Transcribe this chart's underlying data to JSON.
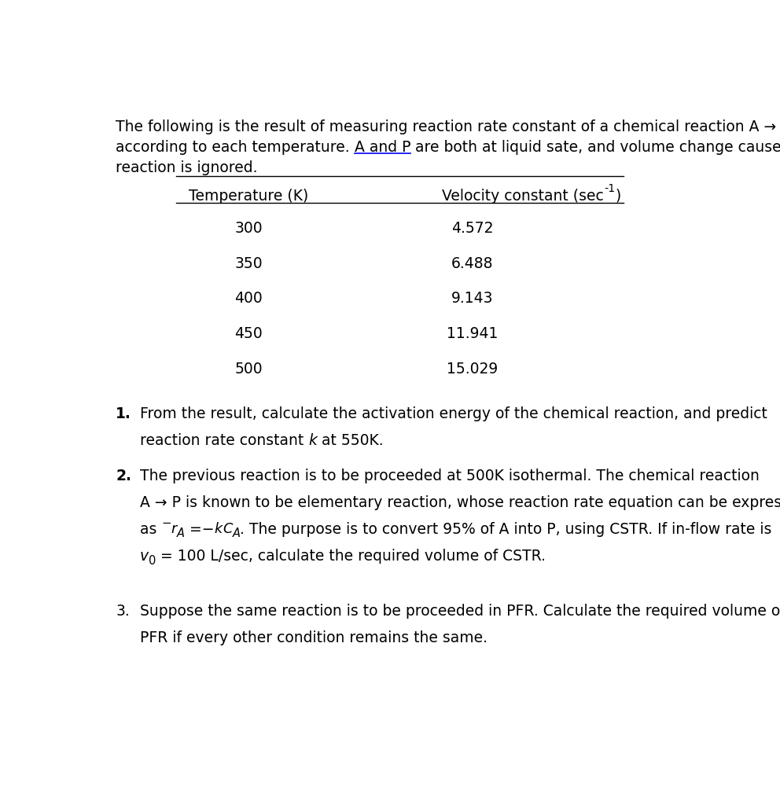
{
  "intro_line1": "The following is the result of measuring reaction rate constant of a chemical reaction A → P,",
  "intro_line2_pre": "according to each temperature. ",
  "intro_line2_underline": "A and P",
  "intro_line2_post": " are both at liquid sate, and volume change caused by the",
  "intro_line3": "reaction is ignored.",
  "col1_header": "Temperature (K)",
  "col2_header": "Velocity constant (sec",
  "col2_sup": "-1",
  "col2_end": ")",
  "temperatures": [
    "300",
    "350",
    "400",
    "450",
    "500"
  ],
  "velocities": [
    "4.572",
    "6.488",
    "9.143",
    "11.941",
    "15.029"
  ],
  "bg_color": "#ffffff",
  "text_color": "#000000",
  "font_size": 13.5
}
